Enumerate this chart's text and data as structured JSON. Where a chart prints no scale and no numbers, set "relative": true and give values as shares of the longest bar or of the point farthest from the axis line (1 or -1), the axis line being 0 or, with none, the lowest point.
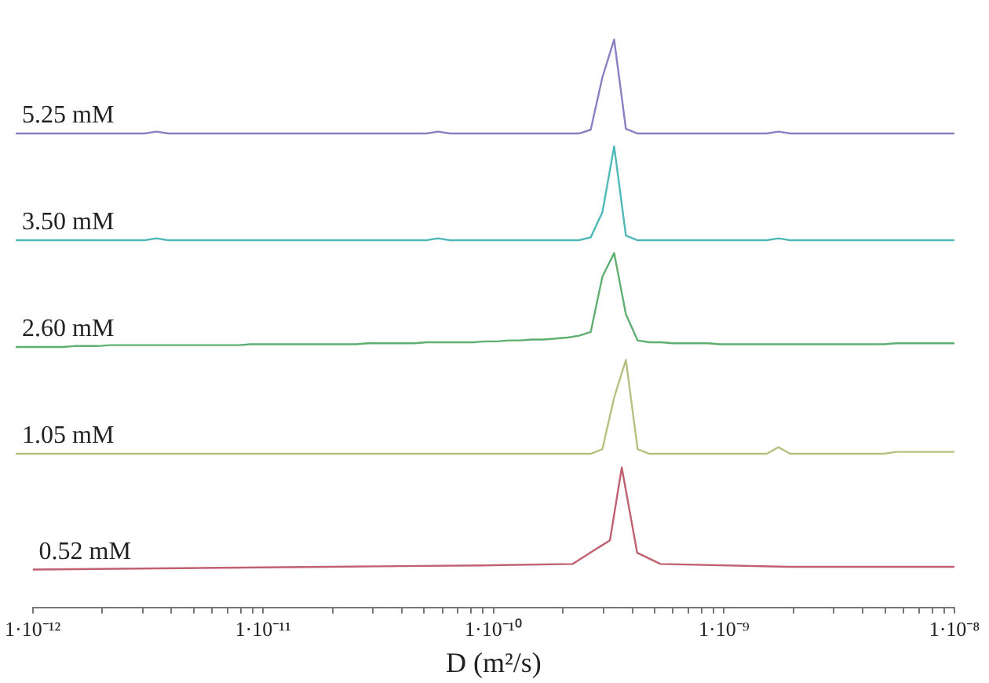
{
  "chart_data": [
    {
      "type": "line",
      "relative": true,
      "categories": [
        null,
        null,
        null,
        null,
        null,
        null,
        null,
        null,
        null,
        null,
        null,
        null,
        null,
        null,
        null,
        null,
        null,
        null,
        null,
        null,
        null,
        null,
        null,
        null,
        null,
        null,
        null,
        null,
        null,
        null,
        null,
        null,
        null,
        null,
        null,
        null,
        null,
        null,
        null,
        null,
        null,
        null,
        null,
        null,
        null,
        null,
        null,
        null,
        null,
        null,
        null,
        null,
        null,
        null,
        null,
        null,
        null,
        null,
        null,
        null,
        null,
        null,
        null,
        null,
        null,
        null,
        null,
        null,
        null,
        null,
        null,
        null,
        null,
        null,
        null,
        null,
        null,
        null,
        null,
        null,
        null
      ],
      "tick_labels": false,
      "legend": false,
      "grid": false,
      "marker": "none",
      "line_style": "solid",
      "series": [
        {
          "name": "5.25 mM",
          "color": "#8a7fc0",
          "values": [
            0,
            0,
            0,
            0,
            0,
            0,
            0,
            0,
            0,
            0,
            0,
            0,
            0.02,
            0,
            0,
            0,
            0,
            0,
            0,
            0,
            0,
            0,
            0,
            0,
            0,
            0,
            0,
            0,
            0,
            0,
            0,
            0,
            0,
            0,
            0,
            0,
            0.02,
            0,
            0,
            0,
            0,
            0,
            0,
            0,
            0,
            0,
            0,
            0,
            0,
            0.04,
            0.6,
            1,
            0.05,
            0,
            0,
            0,
            0,
            0,
            0,
            0,
            0,
            0,
            0,
            0,
            0,
            0.02,
            0,
            0,
            0,
            0,
            0,
            0,
            0,
            0,
            0,
            0,
            0,
            0,
            0,
            0,
            0
          ]
        }
      ]
    },
    {
      "type": "line",
      "relative": true,
      "categories": [
        null,
        null,
        null,
        null,
        null,
        null,
        null,
        null,
        null,
        null,
        null,
        null,
        null,
        null,
        null,
        null,
        null,
        null,
        null,
        null,
        null,
        null,
        null,
        null,
        null,
        null,
        null,
        null,
        null,
        null,
        null,
        null,
        null,
        null,
        null,
        null,
        null,
        null,
        null,
        null,
        null,
        null,
        null,
        null,
        null,
        null,
        null,
        null,
        null,
        null,
        null,
        null,
        null,
        null,
        null,
        null,
        null,
        null,
        null,
        null,
        null,
        null,
        null,
        null,
        null,
        null,
        null,
        null,
        null,
        null,
        null,
        null,
        null,
        null,
        null,
        null,
        null,
        null,
        null,
        null,
        null
      ],
      "tick_labels": false,
      "legend": false,
      "grid": false,
      "marker": "none",
      "line_style": "solid",
      "series": [
        {
          "name": "3.50 mM",
          "color": "#4fb8b8",
          "values": [
            0,
            0,
            0,
            0,
            0,
            0,
            0,
            0,
            0,
            0,
            0,
            0,
            0.02,
            0,
            0,
            0,
            0,
            0,
            0,
            0,
            0,
            0,
            0,
            0,
            0,
            0,
            0,
            0,
            0,
            0,
            0,
            0,
            0,
            0,
            0,
            0,
            0.02,
            0,
            0,
            0,
            0,
            0,
            0,
            0,
            0,
            0,
            0,
            0,
            0,
            0.03,
            0.3,
            1,
            0.05,
            0,
            0,
            0,
            0,
            0,
            0,
            0,
            0,
            0,
            0,
            0,
            0,
            0.02,
            0,
            0,
            0,
            0,
            0,
            0,
            0,
            0,
            0,
            0,
            0,
            0,
            0,
            0,
            0
          ]
        }
      ]
    },
    {
      "type": "line",
      "relative": true,
      "categories": [
        null,
        null,
        null,
        null,
        null,
        null,
        null,
        null,
        null,
        null,
        null,
        null,
        null,
        null,
        null,
        null,
        null,
        null,
        null,
        null,
        null,
        null,
        null,
        null,
        null,
        null,
        null,
        null,
        null,
        null,
        null,
        null,
        null,
        null,
        null,
        null,
        null,
        null,
        null,
        null,
        null,
        null,
        null,
        null,
        null,
        null,
        null,
        null,
        null,
        null,
        null,
        null,
        null,
        null,
        null,
        null,
        null,
        null,
        null,
        null,
        null,
        null,
        null,
        null,
        null,
        null,
        null,
        null,
        null,
        null,
        null,
        null,
        null,
        null,
        null,
        null,
        null,
        null,
        null,
        null,
        null
      ],
      "tick_labels": false,
      "legend": false,
      "grid": false,
      "marker": "none",
      "line_style": "solid",
      "series": [
        {
          "name": "2.60 mM",
          "color": "#5fb070",
          "values": [
            0,
            0,
            0,
            0,
            0,
            0.01,
            0.01,
            0.01,
            0.02,
            0.02,
            0.02,
            0.02,
            0.02,
            0.02,
            0.02,
            0.02,
            0.02,
            0.02,
            0.02,
            0.02,
            0.03,
            0.03,
            0.03,
            0.03,
            0.03,
            0.03,
            0.03,
            0.03,
            0.03,
            0.03,
            0.04,
            0.04,
            0.04,
            0.04,
            0.04,
            0.05,
            0.05,
            0.05,
            0.05,
            0.05,
            0.06,
            0.06,
            0.07,
            0.07,
            0.08,
            0.08,
            0.09,
            0.1,
            0.12,
            0.16,
            0.75,
            1,
            0.35,
            0.07,
            0.05,
            0.05,
            0.04,
            0.04,
            0.04,
            0.04,
            0.03,
            0.03,
            0.03,
            0.03,
            0.03,
            0.03,
            0.03,
            0.03,
            0.03,
            0.03,
            0.03,
            0.03,
            0.03,
            0.03,
            0.03,
            0.04,
            0.04,
            0.04,
            0.04,
            0.04,
            0.04
          ]
        }
      ]
    },
    {
      "type": "line",
      "relative": true,
      "categories": [
        null,
        null,
        null,
        null,
        null,
        null,
        null,
        null,
        null,
        null,
        null,
        null,
        null,
        null,
        null,
        null,
        null,
        null,
        null,
        null,
        null,
        null,
        null,
        null,
        null,
        null,
        null,
        null,
        null,
        null,
        null,
        null,
        null,
        null,
        null,
        null,
        null,
        null,
        null,
        null,
        null,
        null,
        null,
        null,
        null,
        null,
        null,
        null,
        null,
        null,
        null,
        null,
        null,
        null,
        null,
        null,
        null,
        null,
        null,
        null,
        null,
        null,
        null,
        null,
        null,
        null,
        null,
        null,
        null,
        null,
        null,
        null,
        null,
        null,
        null,
        null,
        null,
        null,
        null,
        null,
        null
      ],
      "tick_labels": false,
      "legend": false,
      "grid": false,
      "marker": "none",
      "line_style": "solid",
      "series": [
        {
          "name": "1.05 mM",
          "color": "#b8c080",
          "values": [
            0,
            0,
            0,
            0,
            0,
            0,
            0,
            0,
            0,
            0,
            0,
            0,
            0,
            0,
            0,
            0,
            0,
            0,
            0,
            0,
            0,
            0,
            0,
            0,
            0,
            0,
            0,
            0,
            0,
            0,
            0,
            0,
            0,
            0,
            0,
            0,
            0,
            0,
            0,
            0,
            0,
            0,
            0,
            0,
            0,
            0,
            0,
            0,
            0,
            0,
            0.05,
            0.6,
            1,
            0.05,
            0,
            0,
            0,
            0,
            0,
            0,
            0,
            0,
            0,
            0,
            0,
            0.07,
            0,
            0,
            0,
            0,
            0,
            0,
            0,
            0,
            0,
            0.02,
            0.02,
            0.02,
            0.02,
            0.02,
            0.02
          ]
        }
      ]
    },
    {
      "type": "line",
      "relative": true,
      "log": "x",
      "xlim": [
        1e-12,
        1e-08
      ],
      "tick_labels": "x",
      "legend": false,
      "grid": false,
      "marker": "none",
      "line_style": "solid",
      "xlabel": "D (m²/s)",
      "xticks": [
        {
          "value": 1e-12,
          "label": "1·10⁻¹²"
        },
        {
          "value": 2e-12,
          "label": null
        },
        {
          "value": 3e-12,
          "label": null
        },
        {
          "value": 4e-12,
          "label": null
        },
        {
          "value": 5e-12,
          "label": null
        },
        {
          "value": 6e-12,
          "label": null
        },
        {
          "value": 7e-12,
          "label": null
        },
        {
          "value": 8e-12,
          "label": null
        },
        {
          "value": 9e-12,
          "label": null
        },
        {
          "value": 1e-11,
          "label": "1·10⁻¹¹"
        },
        {
          "value": 2e-11,
          "label": null
        },
        {
          "value": 3e-11,
          "label": null
        },
        {
          "value": 4e-11,
          "label": null
        },
        {
          "value": 5e-11,
          "label": null
        },
        {
          "value": 6e-11,
          "label": null
        },
        {
          "value": 7e-11,
          "label": null
        },
        {
          "value": 8e-11,
          "label": null
        },
        {
          "value": 9e-11,
          "label": null
        },
        {
          "value": 1e-10,
          "label": "1·10⁻¹⁰"
        },
        {
          "value": 2e-10,
          "label": null
        },
        {
          "value": 3e-10,
          "label": null
        },
        {
          "value": 4e-10,
          "label": null
        },
        {
          "value": 5e-10,
          "label": null
        },
        {
          "value": 6e-10,
          "label": null
        },
        {
          "value": 7e-10,
          "label": null
        },
        {
          "value": 8e-10,
          "label": null
        },
        {
          "value": 9e-10,
          "label": null
        },
        {
          "value": 1e-09,
          "label": "1·10⁻⁹"
        },
        {
          "value": 2e-09,
          "label": null
        },
        {
          "value": 3e-09,
          "label": null
        },
        {
          "value": 4e-09,
          "label": null
        },
        {
          "value": 5e-09,
          "label": null
        },
        {
          "value": 6e-09,
          "label": null
        },
        {
          "value": 7e-09,
          "label": null
        },
        {
          "value": 8e-09,
          "label": null
        },
        {
          "value": 9e-09,
          "label": null
        },
        {
          "value": 1e-08,
          "label": "1·10⁻⁸"
        }
      ],
      "series": [
        {
          "name": "0.52 mM",
          "color": "#c06070",
          "x": [
            1e-12,
            1.9e-11,
            8.8e-11,
            2.2e-10,
            3.2e-10,
            3.6e-10,
            4.2e-10,
            5.3e-10,
            1.9e-09,
            1e-08
          ],
          "values": [
            0.27,
            0.29,
            0.3,
            0.31,
            0.48,
            1,
            0.39,
            0.31,
            0.29,
            0.29
          ]
        }
      ]
    }
  ]
}
